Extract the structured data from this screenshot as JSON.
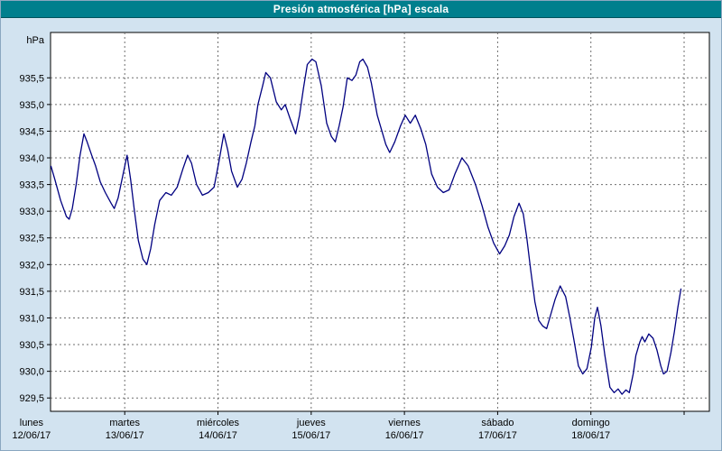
{
  "window": {
    "title": "Presión atmosférica [hPa] escala"
  },
  "colors": {
    "titlebar_bg": "#007f8d",
    "titlebar_text": "#ffffff",
    "canvas_bg": "#d2e3f0",
    "plot_bg": "#ffffff",
    "line": "#000080",
    "grid": "#6e6e6e",
    "axis": "#000000",
    "text": "#000000"
  },
  "chart_data": {
    "type": "line",
    "title": "Presión atmosférica [hPa] escala",
    "xlabel": "",
    "ylabel": "hPa",
    "grid": true,
    "legend": false,
    "ylim": [
      929.25,
      936.35
    ],
    "y_ticks": [
      {
        "value": 935.5,
        "label": "935,5"
      },
      {
        "value": 935.0,
        "label": "935,0"
      },
      {
        "value": 934.5,
        "label": "934,5"
      },
      {
        "value": 934.0,
        "label": "934,0"
      },
      {
        "value": 933.5,
        "label": "933,5"
      },
      {
        "value": 933.0,
        "label": "933,0"
      },
      {
        "value": 932.5,
        "label": "932,5"
      },
      {
        "value": 932.0,
        "label": "932,0"
      },
      {
        "value": 931.5,
        "label": "931,5"
      },
      {
        "value": 931.0,
        "label": "931,0"
      },
      {
        "value": 930.5,
        "label": "930,5"
      },
      {
        "value": 930.0,
        "label": "930,0"
      },
      {
        "value": 929.5,
        "label": "929,5"
      }
    ],
    "x_axis": {
      "unit": "hours_from_monday_00",
      "start_hour": 4.9,
      "end_hour": 174.5,
      "day_ticks": [
        {
          "hour": 0,
          "weekday": "lunes",
          "date": "12/06/17"
        },
        {
          "hour": 24,
          "weekday": "martes",
          "date": "13/06/17"
        },
        {
          "hour": 48,
          "weekday": "miércoles",
          "date": "14/06/17"
        },
        {
          "hour": 72,
          "weekday": "jueves",
          "date": "15/06/17"
        },
        {
          "hour": 96,
          "weekday": "viernes",
          "date": "16/06/17"
        },
        {
          "hour": 120,
          "weekday": "sábado",
          "date": "17/06/17"
        },
        {
          "hour": 144,
          "weekday": "domingo",
          "date": "18/06/17"
        }
      ],
      "extra_gridline_hours": [
        168
      ]
    },
    "series": [
      {
        "name": "Presión atmosférica [hPa]",
        "color": "#000080",
        "points": [
          [
            5,
            933.85
          ],
          [
            6,
            933.6
          ],
          [
            7.5,
            933.2
          ],
          [
            9,
            932.9
          ],
          [
            9.7,
            932.85
          ],
          [
            10.5,
            933.05
          ],
          [
            11.5,
            933.5
          ],
          [
            12.5,
            934.05
          ],
          [
            13.5,
            934.45
          ],
          [
            14.3,
            934.3
          ],
          [
            15.5,
            934.05
          ],
          [
            16.5,
            933.85
          ],
          [
            17.7,
            933.55
          ],
          [
            19,
            933.35
          ],
          [
            20.5,
            933.15
          ],
          [
            21.3,
            933.05
          ],
          [
            22.3,
            933.25
          ],
          [
            23.3,
            933.6
          ],
          [
            24.6,
            934.05
          ],
          [
            25.5,
            933.6
          ],
          [
            26.5,
            933
          ],
          [
            27.5,
            932.45
          ],
          [
            28.7,
            932.1
          ],
          [
            29.7,
            932
          ],
          [
            30.7,
            932.3
          ],
          [
            31.7,
            932.75
          ],
          [
            33,
            933.2
          ],
          [
            34.6,
            933.35
          ],
          [
            36,
            933.3
          ],
          [
            37.5,
            933.45
          ],
          [
            39,
            933.8
          ],
          [
            40.2,
            934.05
          ],
          [
            41.2,
            933.9
          ],
          [
            42.5,
            933.5
          ],
          [
            44,
            933.3
          ],
          [
            45.5,
            933.35
          ],
          [
            47,
            933.45
          ],
          [
            48.3,
            933.95
          ],
          [
            49.5,
            934.45
          ],
          [
            50.5,
            934.15
          ],
          [
            51.5,
            933.75
          ],
          [
            53,
            933.45
          ],
          [
            54.2,
            933.6
          ],
          [
            55.3,
            933.9
          ],
          [
            56.5,
            934.3
          ],
          [
            57.5,
            934.6
          ],
          [
            58.3,
            935
          ],
          [
            59.5,
            935.35
          ],
          [
            60.3,
            935.6
          ],
          [
            61.5,
            935.5
          ],
          [
            63,
            935.05
          ],
          [
            64.3,
            934.9
          ],
          [
            65.3,
            935
          ],
          [
            66.5,
            934.75
          ],
          [
            68,
            934.45
          ],
          [
            69,
            934.8
          ],
          [
            70,
            935.3
          ],
          [
            71,
            935.75
          ],
          [
            72.2,
            935.85
          ],
          [
            73.2,
            935.8
          ],
          [
            74.6,
            935.35
          ],
          [
            76,
            934.65
          ],
          [
            77.2,
            934.4
          ],
          [
            78.2,
            934.3
          ],
          [
            79.2,
            934.6
          ],
          [
            80.2,
            934.95
          ],
          [
            81.3,
            935.5
          ],
          [
            82.5,
            935.45
          ],
          [
            83.5,
            935.55
          ],
          [
            84.5,
            935.8
          ],
          [
            85.3,
            935.85
          ],
          [
            86.5,
            935.7
          ],
          [
            87.5,
            935.4
          ],
          [
            89,
            934.8
          ],
          [
            90.2,
            934.5
          ],
          [
            91.2,
            934.25
          ],
          [
            92.2,
            934.1
          ],
          [
            93.5,
            934.3
          ],
          [
            95,
            934.6
          ],
          [
            96.2,
            934.8
          ],
          [
            97.5,
            934.65
          ],
          [
            98.8,
            934.8
          ],
          [
            100.2,
            934.55
          ],
          [
            101.5,
            934.25
          ],
          [
            103,
            933.7
          ],
          [
            104.5,
            933.45
          ],
          [
            106,
            933.35
          ],
          [
            107.5,
            933.4
          ],
          [
            109,
            933.7
          ],
          [
            110.8,
            934
          ],
          [
            112.4,
            933.85
          ],
          [
            114.3,
            933.5
          ],
          [
            116,
            933.1
          ],
          [
            117.5,
            932.7
          ],
          [
            119,
            932.4
          ],
          [
            120.5,
            932.2
          ],
          [
            121.8,
            932.35
          ],
          [
            123,
            932.55
          ],
          [
            124.2,
            932.9
          ],
          [
            125.5,
            933.15
          ],
          [
            126.6,
            932.95
          ],
          [
            127.5,
            932.5
          ],
          [
            128.5,
            931.9
          ],
          [
            129.6,
            931.3
          ],
          [
            130.6,
            930.95
          ],
          [
            131.6,
            930.85
          ],
          [
            132.6,
            930.8
          ],
          [
            133.6,
            931.05
          ],
          [
            134.8,
            931.35
          ],
          [
            136.1,
            931.6
          ],
          [
            137.5,
            931.4
          ],
          [
            138.6,
            931
          ],
          [
            139.6,
            930.6
          ],
          [
            140.8,
            930.1
          ],
          [
            141.9,
            929.95
          ],
          [
            143,
            930.05
          ],
          [
            144.1,
            930.45
          ],
          [
            145,
            931
          ],
          [
            145.7,
            931.2
          ],
          [
            146.6,
            930.85
          ],
          [
            147.6,
            930.3
          ],
          [
            148.9,
            929.7
          ],
          [
            150,
            929.6
          ],
          [
            151,
            929.67
          ],
          [
            152,
            929.57
          ],
          [
            153,
            929.65
          ],
          [
            153.9,
            929.6
          ],
          [
            154.9,
            929.95
          ],
          [
            155.6,
            930.3
          ],
          [
            156.6,
            930.55
          ],
          [
            157.2,
            930.65
          ],
          [
            157.9,
            930.55
          ],
          [
            158.9,
            930.7
          ],
          [
            160,
            930.62
          ],
          [
            161,
            930.4
          ],
          [
            162,
            930.1
          ],
          [
            162.7,
            929.95
          ],
          [
            163.6,
            930
          ],
          [
            164.6,
            930.35
          ],
          [
            165.5,
            930.75
          ],
          [
            166.4,
            931.2
          ],
          [
            167.2,
            931.55
          ]
        ]
      }
    ]
  }
}
